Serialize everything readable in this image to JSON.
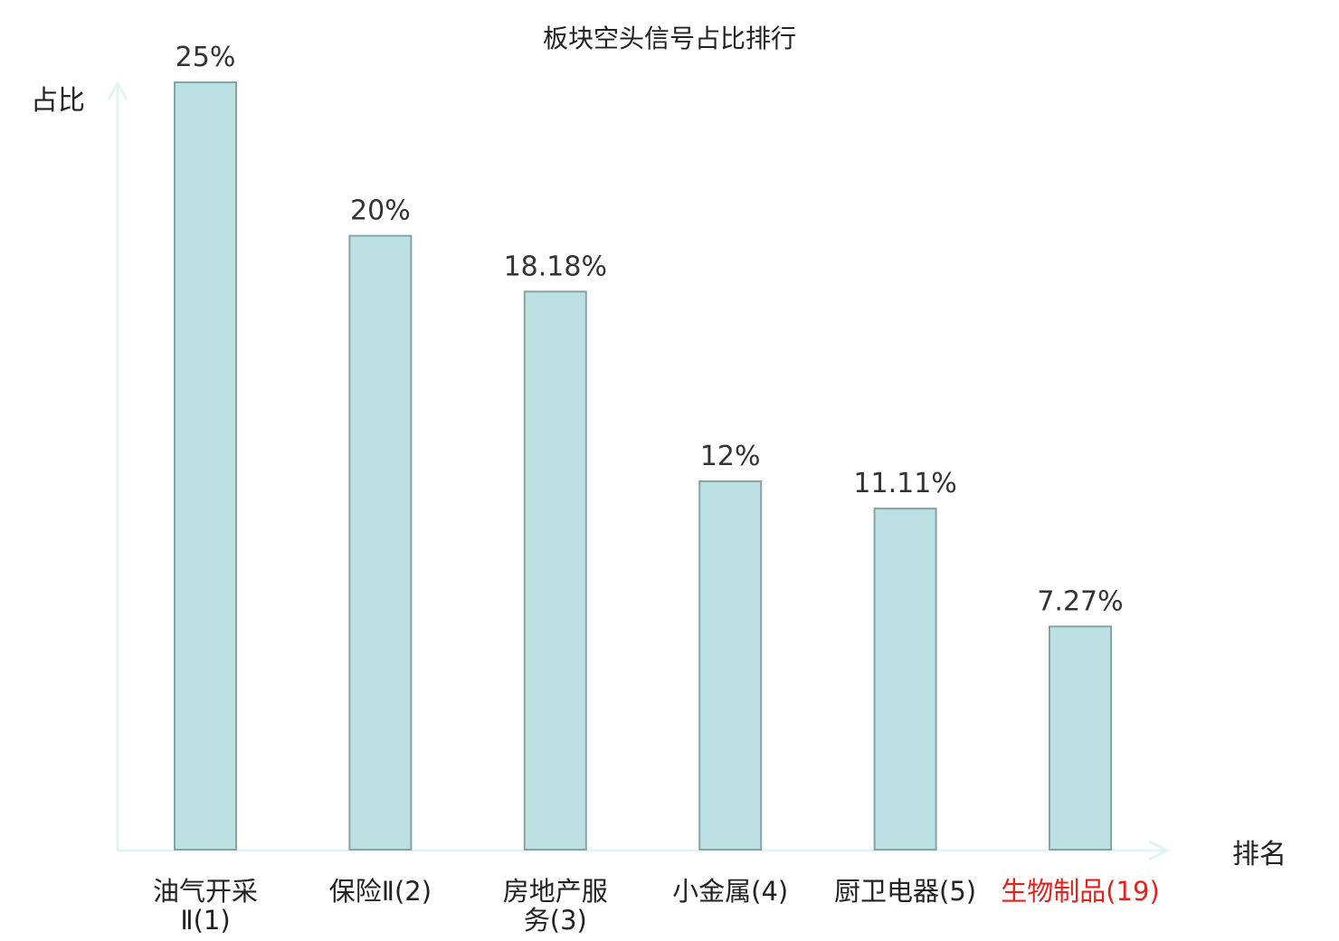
{
  "chart_data": {
    "type": "bar",
    "title": "板块空头信号占比排行",
    "xlabel": "排名",
    "ylabel": "占比",
    "ylim": [
      0,
      25
    ],
    "grid": false,
    "legend": "none",
    "categories": [
      [
        "油气开采",
        "Ⅱ(1)"
      ],
      [
        "保险Ⅱ(2)"
      ],
      [
        "房地产服",
        "务(3)"
      ],
      [
        "小金属(4)"
      ],
      [
        "厨卫电器(5)"
      ],
      [
        "生物制品(19)"
      ]
    ],
    "values": [
      25,
      20,
      18.18,
      12,
      11.11,
      7.27
    ],
    "value_labels": [
      "25%",
      "20%",
      "18.18%",
      "12%",
      "11.11%",
      "7.27%"
    ],
    "highlighted_category_index": 5
  },
  "colors": {
    "bar_fill": "#bde0e2",
    "bar_stroke": "#84a4a6",
    "axis": "#e2f4f2",
    "text": "#222222",
    "value_text": "#333333",
    "highlight": "#e8201a"
  }
}
